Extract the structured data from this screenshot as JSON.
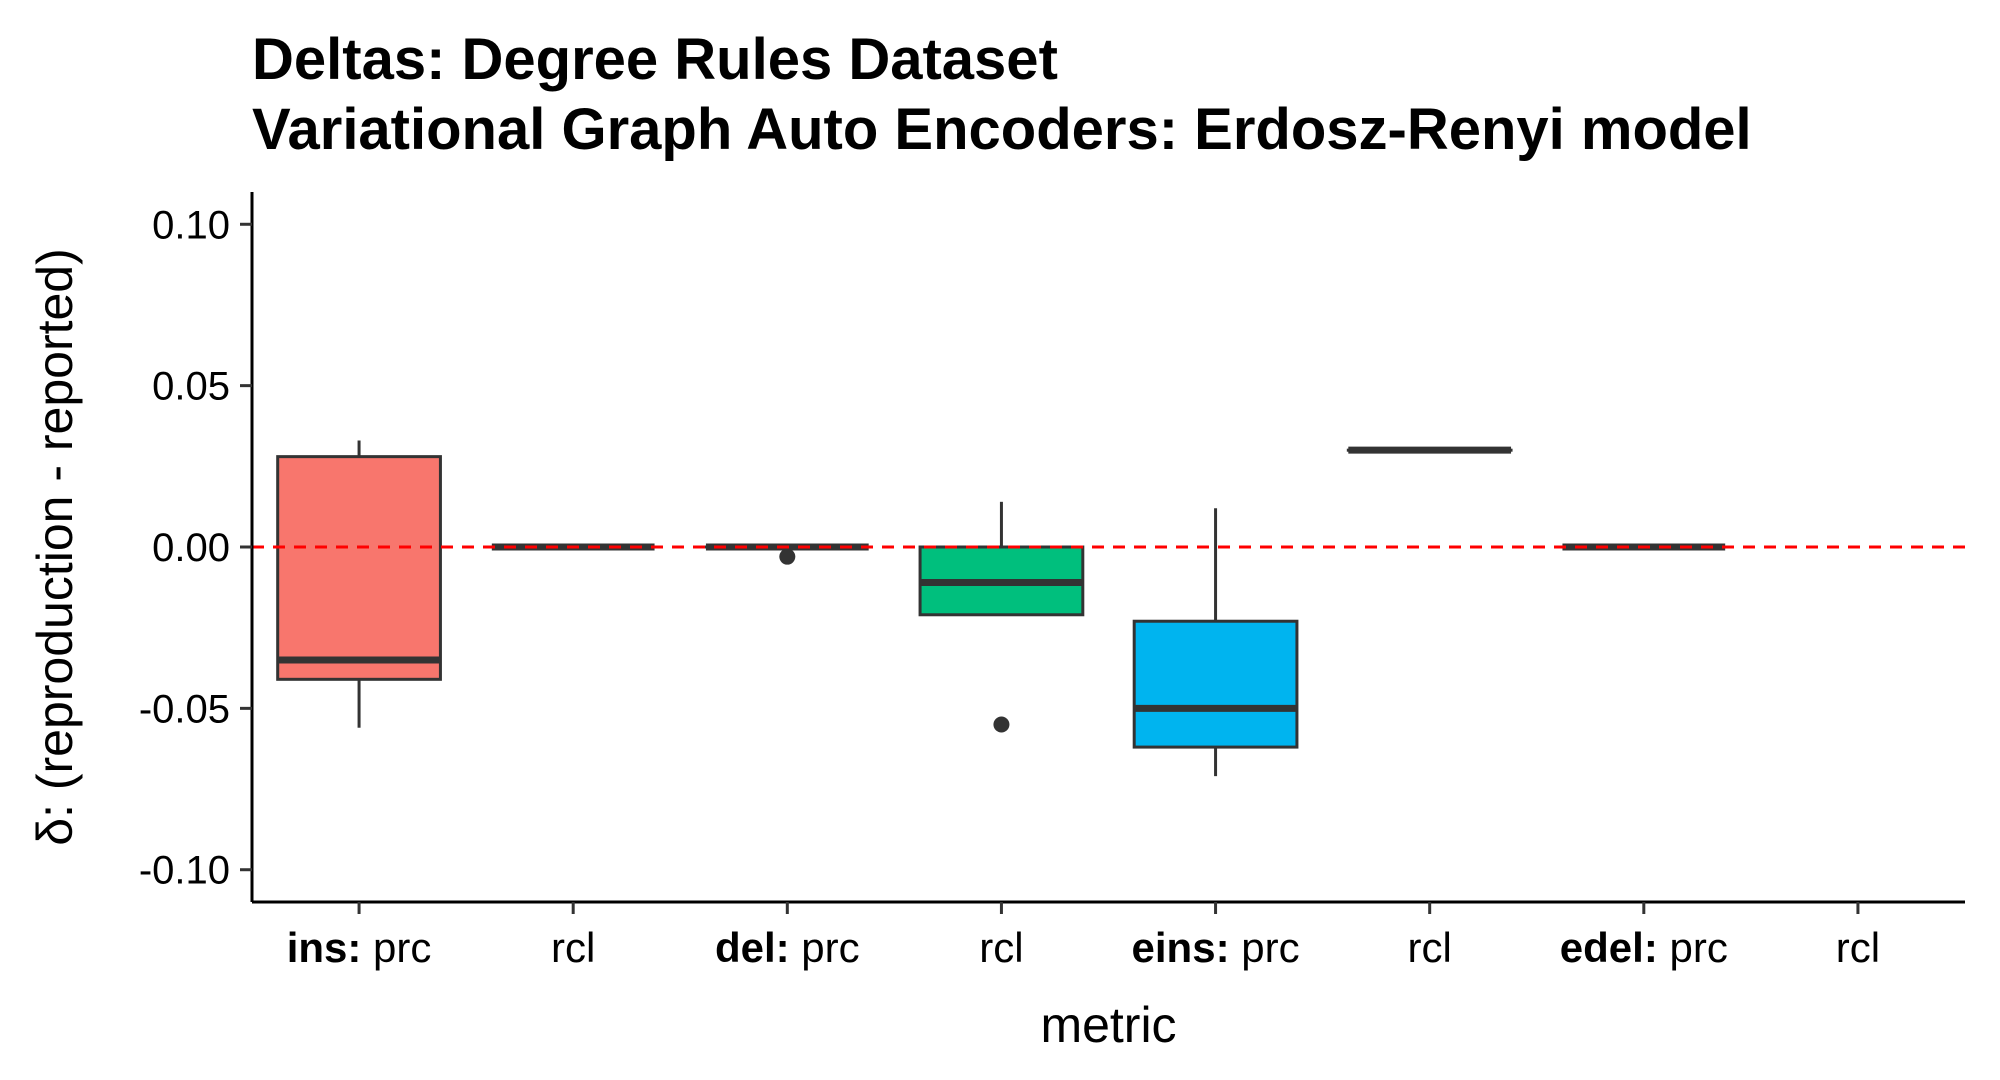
{
  "chart_data": {
    "type": "box",
    "title": [
      "Deltas: Degree Rules Dataset",
      "Variational Graph Auto Encoders: Erdosz-Renyi model"
    ],
    "xlabel": "metric",
    "ylabel": "δ: (reproduction - reported)",
    "ylim": [
      -0.11,
      0.11
    ],
    "yticks": [
      0.1,
      0.05,
      0.0,
      -0.05,
      -0.1
    ],
    "ytick_labels": [
      "0.10",
      "0.05",
      "0.00",
      "-0.05",
      "-0.10"
    ],
    "reference_line": {
      "y": 0.0,
      "color": "#ff0000",
      "style": "dashed"
    },
    "categories": [
      {
        "group": "ins:",
        "metric": "prc"
      },
      {
        "group": "",
        "metric": "rcl"
      },
      {
        "group": "del:",
        "metric": "prc"
      },
      {
        "group": "",
        "metric": "rcl"
      },
      {
        "group": "eins:",
        "metric": "prc"
      },
      {
        "group": "",
        "metric": "rcl"
      },
      {
        "group": "edel:",
        "metric": "prc"
      },
      {
        "group": "",
        "metric": "rcl"
      }
    ],
    "boxes": [
      {
        "category_index": 0,
        "fill": "#F8766D",
        "min": -0.056,
        "q1": -0.041,
        "median": -0.035,
        "q3": 0.028,
        "max": 0.033,
        "outliers": []
      },
      {
        "category_index": 1,
        "fill": "#F8766D",
        "min": 0.0,
        "q1": 0.0,
        "median": 0.0,
        "q3": 0.0,
        "max": 0.0,
        "outliers": []
      },
      {
        "category_index": 2,
        "fill": "#7CAE00",
        "min": 0.0,
        "q1": 0.0,
        "median": 0.0,
        "q3": 0.0,
        "max": 0.0,
        "outliers": [
          -0.003
        ]
      },
      {
        "category_index": 3,
        "fill": "#00BF7D",
        "min": -0.021,
        "q1": -0.021,
        "median": -0.011,
        "q3": 0.0,
        "max": 0.014,
        "outliers": [
          -0.055
        ]
      },
      {
        "category_index": 4,
        "fill": "#00B4EF",
        "min": -0.071,
        "q1": -0.062,
        "median": -0.05,
        "q3": -0.023,
        "max": 0.012,
        "outliers": []
      },
      {
        "category_index": 5,
        "fill": "#00B4EF",
        "min": 0.03,
        "q1": 0.03,
        "median": 0.03,
        "q3": 0.03,
        "max": 0.03,
        "outliers": []
      },
      {
        "category_index": 6,
        "fill": "#E76BF3",
        "min": 0.0,
        "q1": 0.0,
        "median": 0.0,
        "q3": 0.0,
        "max": 0.0,
        "outliers": []
      }
    ],
    "grid": false,
    "legend": "none"
  }
}
